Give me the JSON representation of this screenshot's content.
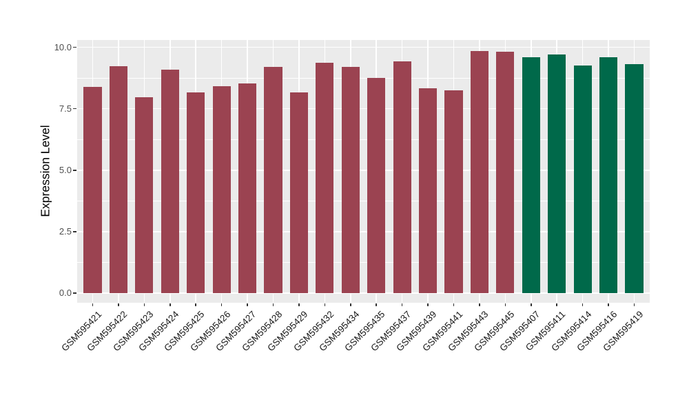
{
  "chart_data": {
    "type": "bar",
    "title": "",
    "xlabel": "",
    "ylabel": "Expression Level",
    "ylim": [
      0,
      10.35
    ],
    "legend": "none",
    "grid": "on",
    "x_label_rotation_deg": 45,
    "background": {
      "page": "#FFFFFF",
      "panel": "#EBEBEB",
      "gridline": "#FFFFFF"
    },
    "axis_colors": {
      "tick_mark": "#333333",
      "y_tick_label": "#4D4D4D",
      "x_tick_label": "#1A1A1A",
      "axis_title": "#000000"
    },
    "y_axis": {
      "ticks": [
        0.0,
        2.5,
        5.0,
        7.5,
        10.0
      ],
      "tick_labels": [
        "0.0",
        "2.5",
        "5.0",
        "7.5",
        "10.0"
      ],
      "minor_ticks": [
        1.25,
        3.75,
        6.25,
        8.75
      ]
    },
    "categories": [
      "GSM595421",
      "GSM595422",
      "GSM595423",
      "GSM595424",
      "GSM595425",
      "GSM595426",
      "GSM595427",
      "GSM595428",
      "GSM595429",
      "GSM595432",
      "GSM595434",
      "GSM595435",
      "GSM595437",
      "GSM595439",
      "GSM595441",
      "GSM595443",
      "GSM595445",
      "GSM595407",
      "GSM595411",
      "GSM595414",
      "GSM595416",
      "GSM595419"
    ],
    "series": [
      {
        "name": "Expression Level",
        "values": [
          8.39,
          9.23,
          7.97,
          9.09,
          8.15,
          8.42,
          8.54,
          9.21,
          8.15,
          9.38,
          9.21,
          8.76,
          9.42,
          8.34,
          8.25,
          9.85,
          9.82,
          9.59,
          9.7,
          9.27,
          9.59,
          9.32
        ]
      }
    ],
    "bar_groups": [
      "maroon",
      "maroon",
      "maroon",
      "maroon",
      "maroon",
      "maroon",
      "maroon",
      "maroon",
      "maroon",
      "maroon",
      "maroon",
      "maroon",
      "maroon",
      "maroon",
      "maroon",
      "maroon",
      "maroon",
      "green",
      "green",
      "green",
      "green",
      "green"
    ],
    "group_colors": {
      "maroon": "#9B4351",
      "green": "#00694A"
    }
  }
}
